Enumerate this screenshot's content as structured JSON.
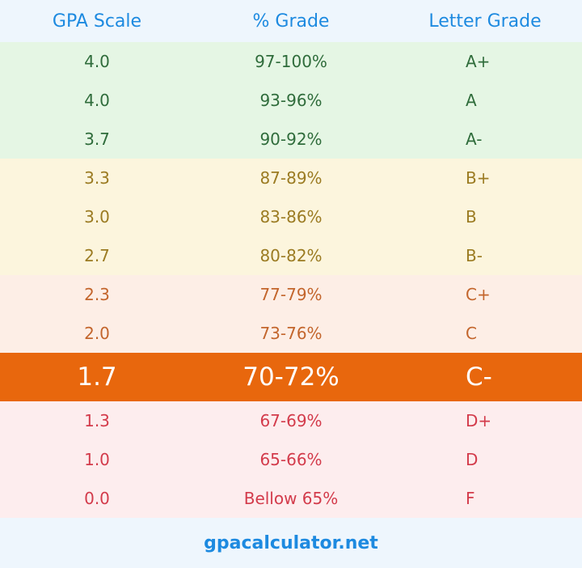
{
  "table": {
    "header": [
      "GPA Scale",
      "% Grade",
      "Letter Grade"
    ],
    "rows": [
      [
        "4.0",
        "97-100%",
        "A+"
      ],
      [
        "4.0",
        "93-96%",
        "A"
      ],
      [
        "3.7",
        "90-92%",
        "A-"
      ],
      [
        "3.3",
        "87-89%",
        "B+"
      ],
      [
        "3.0",
        "83-86%",
        "B"
      ],
      [
        "2.7",
        "80-82%",
        "B-"
      ],
      [
        "2.3",
        "77-79%",
        "C+"
      ],
      [
        "2.0",
        "73-76%",
        "C"
      ],
      [
        "1.7",
        "70-72%",
        "C-"
      ],
      [
        "1.3",
        "67-69%",
        "D+"
      ],
      [
        "1.0",
        "65-66%",
        "D"
      ],
      [
        "0.0",
        "Bellow 65%",
        "F"
      ]
    ]
  },
  "footer": "gpacalculator.net"
}
